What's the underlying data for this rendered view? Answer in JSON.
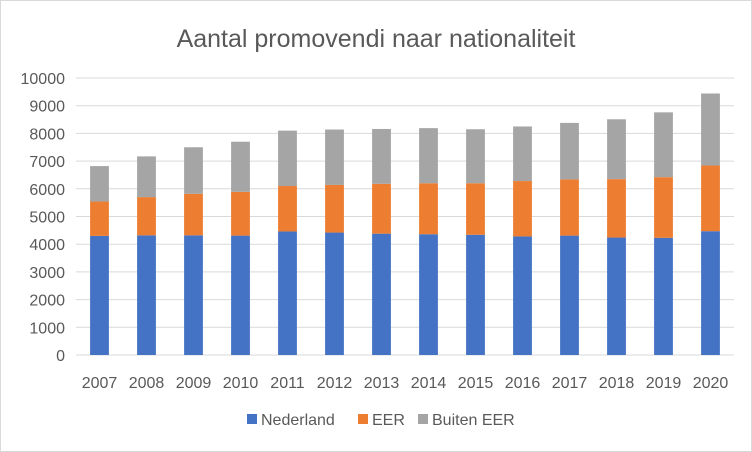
{
  "chart_data": {
    "type": "bar",
    "stacked": true,
    "title": "Aantal promovendi naar nationaliteit",
    "xlabel": "",
    "ylabel": "",
    "categories": [
      "2007",
      "2008",
      "2009",
      "2010",
      "2011",
      "2012",
      "2013",
      "2014",
      "2015",
      "2016",
      "2017",
      "2018",
      "2019",
      "2020"
    ],
    "series": [
      {
        "name": "Nederland",
        "color": "#4472c4",
        "values": [
          4300,
          4320,
          4320,
          4310,
          4460,
          4420,
          4380,
          4360,
          4340,
          4280,
          4310,
          4240,
          4230,
          4470
        ]
      },
      {
        "name": "EER",
        "color": "#ed7d31",
        "values": [
          1240,
          1380,
          1500,
          1580,
          1640,
          1720,
          1800,
          1840,
          1860,
          2000,
          2030,
          2110,
          2190,
          2370
        ]
      },
      {
        "name": "Buiten EER",
        "color": "#a5a5a5",
        "values": [
          1280,
          1470,
          1680,
          1810,
          2000,
          2000,
          1980,
          1990,
          1950,
          1970,
          2040,
          2160,
          2340,
          2600
        ]
      }
    ],
    "ylim": [
      0,
      10000
    ],
    "yticks": [
      0,
      1000,
      2000,
      3000,
      4000,
      5000,
      6000,
      7000,
      8000,
      9000,
      10000
    ],
    "grid": true,
    "legend_position": "bottom"
  }
}
